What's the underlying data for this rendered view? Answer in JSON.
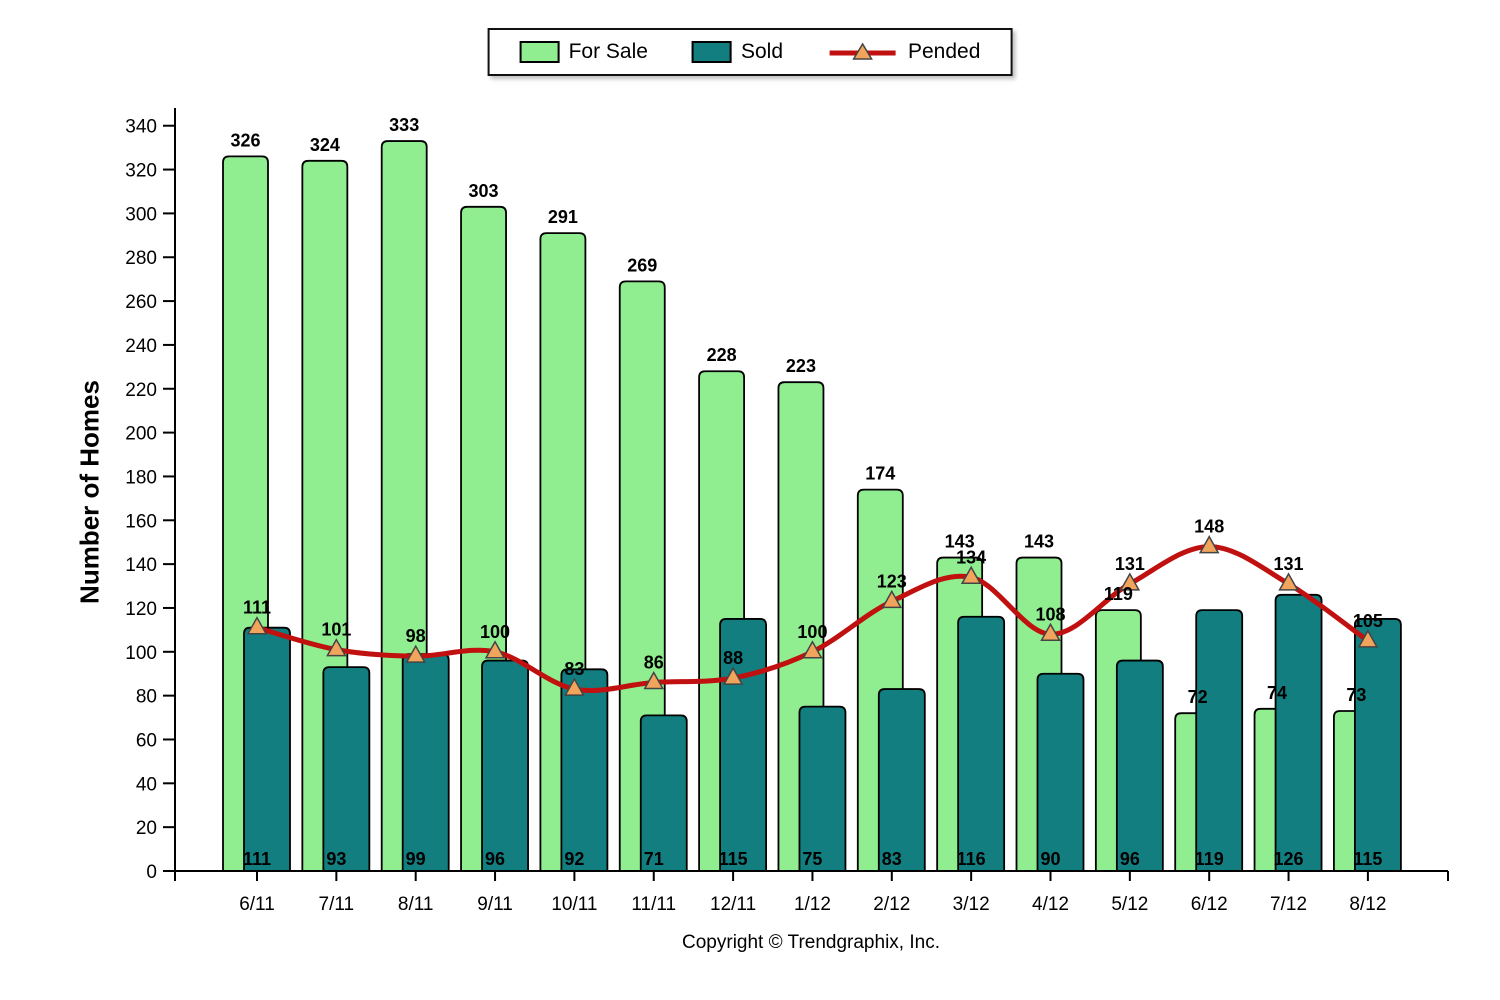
{
  "chart_data": {
    "type": "bar",
    "title": "",
    "xlabel": "",
    "ylabel": "Number of Homes",
    "ylim": [
      0,
      340
    ],
    "ytick_step": 20,
    "grid": false,
    "legend_position": "top-center",
    "categories": [
      "6/11",
      "7/11",
      "8/11",
      "9/11",
      "10/11",
      "11/11",
      "12/11",
      "1/12",
      "2/12",
      "3/12",
      "4/12",
      "5/12",
      "6/12",
      "7/12",
      "8/12"
    ],
    "series": [
      {
        "name": "For Sale",
        "type": "bar",
        "color": "#90EE90",
        "values": [
          326,
          324,
          333,
          303,
          291,
          269,
          228,
          223,
          174,
          143,
          143,
          119,
          72,
          74,
          73
        ]
      },
      {
        "name": "Sold",
        "type": "bar",
        "color": "#137E80",
        "values": [
          111,
          93,
          99,
          96,
          92,
          71,
          115,
          75,
          83,
          116,
          90,
          96,
          119,
          126,
          115
        ]
      },
      {
        "name": "Pended",
        "type": "line",
        "color": "#C01010",
        "marker": "triangle",
        "marker_color": "#F0A45C",
        "values": [
          111,
          101,
          98,
          100,
          83,
          86,
          88,
          100,
          123,
          134,
          108,
          131,
          148,
          131,
          105
        ]
      }
    ],
    "footer": "Copyright © Trendgraphix, Inc."
  }
}
